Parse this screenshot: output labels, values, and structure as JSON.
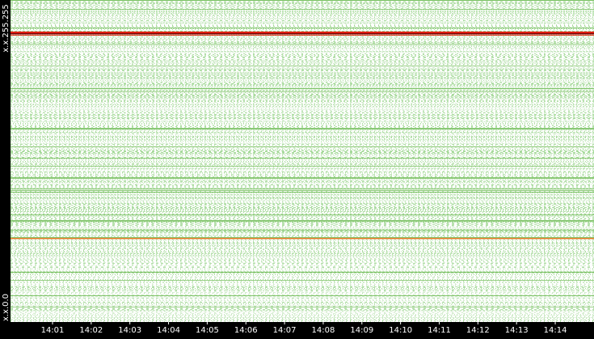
{
  "y_axis": {
    "top": "x.x.255.255",
    "bottom": "x.x.0.0"
  },
  "x_axis": {
    "labels": [
      "14:01",
      "14:02",
      "14:03",
      "14:04",
      "14:05",
      "14:06",
      "14:07",
      "14:08",
      "14:09",
      "14:10",
      "14:11",
      "14:12",
      "14:13",
      "14:14"
    ]
  }
}
